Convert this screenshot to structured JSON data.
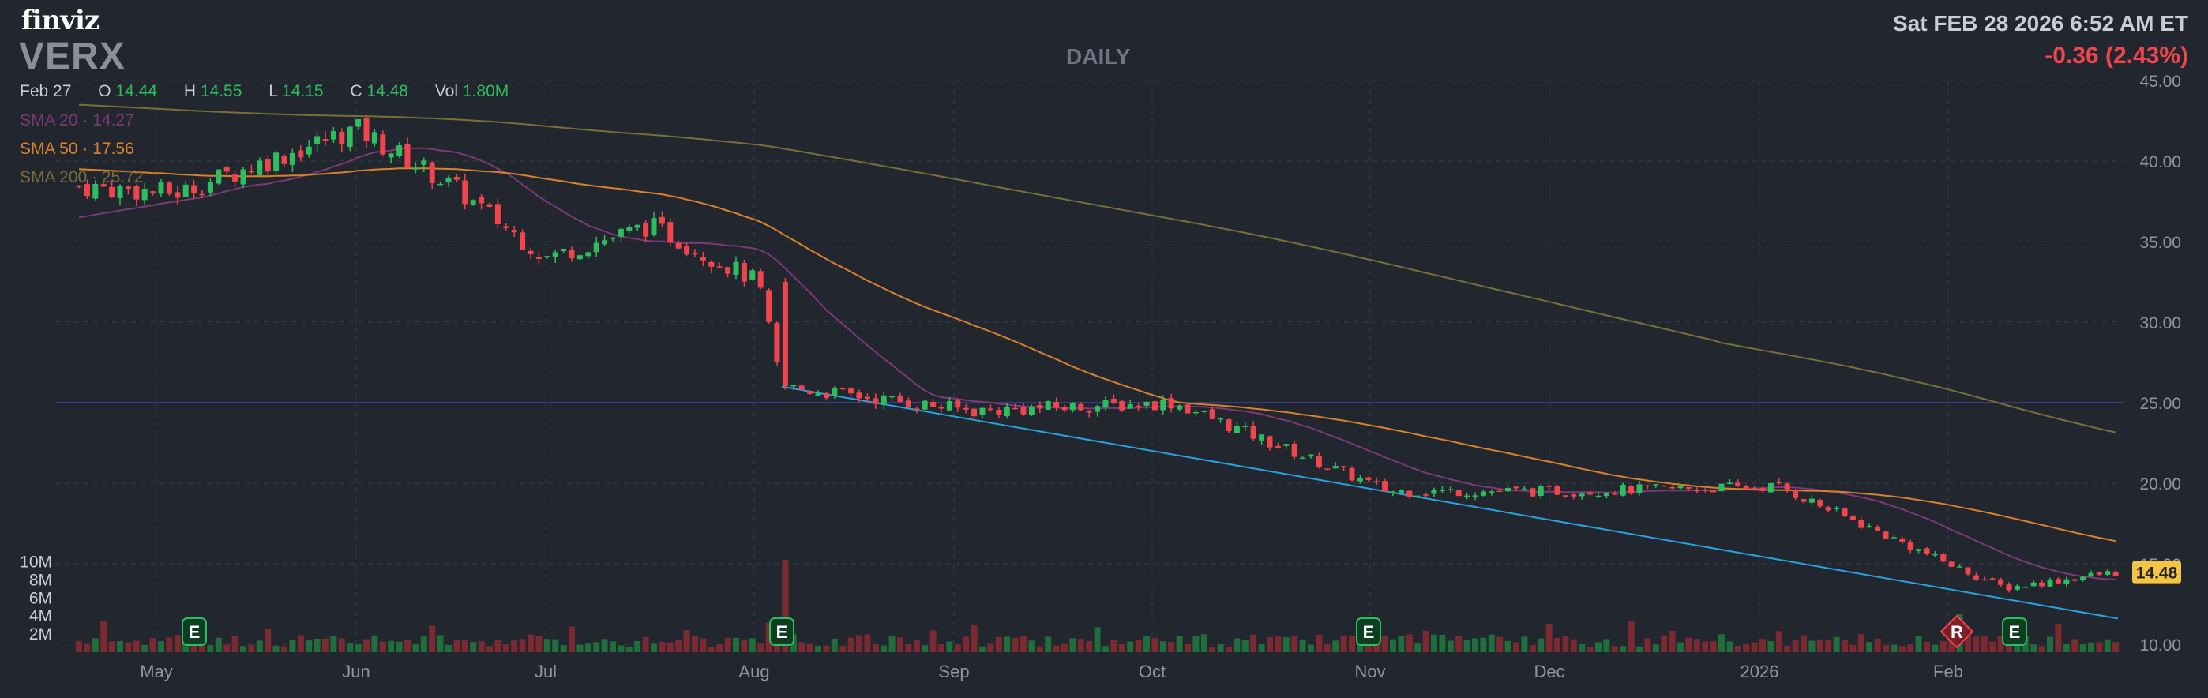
{
  "header": {
    "brand": "finviz",
    "ticker": "VERX",
    "timeframe": "DAILY",
    "datetime": "Sat FEB 28 2026 6:52 AM ET",
    "change": "-0.36 (2.43%)"
  },
  "ohlc": {
    "date": "Feb 27",
    "open_label": "O",
    "open": "14.44",
    "high_label": "H",
    "high": "14.55",
    "low_label": "L",
    "low": "14.15",
    "close_label": "C",
    "close": "14.48",
    "vol_label": "Vol",
    "vol": "1.80M"
  },
  "indicators": {
    "sma20_label": "SMA 20",
    "sma20_value": "14.27",
    "sma50_label": "SMA 50",
    "sma50_value": "17.56",
    "sma200_label": "SMA 200",
    "sma200_value": "25.72",
    "separator": "·"
  },
  "colors": {
    "background": "#22262f",
    "up": "#2fbe5f",
    "down": "#f0454d",
    "sma20": "#7a3a76",
    "sma50": "#d9822b",
    "sma200": "#7a6f3a",
    "trendline": "#29a3e0",
    "hline": "#3b3a8a",
    "price_tag": "#f4c542"
  },
  "chart_data": {
    "type": "candlestick",
    "y_ticks": [
      "45.00",
      "40.00",
      "35.00",
      "30.00",
      "25.00",
      "20.00",
      "15.00",
      "10.00"
    ],
    "ylim": [
      10,
      45
    ],
    "volume_ticks": [
      "10M",
      "8M",
      "6M",
      "4M",
      "2M"
    ],
    "x_ticks": [
      "May",
      "Jun",
      "Jul",
      "Aug",
      "Sep",
      "Oct",
      "Nov",
      "Dec",
      "2026",
      "Feb"
    ],
    "last_price_tag": "14.48",
    "events": [
      {
        "label": "E",
        "month": "May",
        "kind": "earnings"
      },
      {
        "label": "E",
        "month": "Aug",
        "kind": "earnings"
      },
      {
        "label": "E",
        "month": "Nov",
        "kind": "earnings"
      },
      {
        "label": "R",
        "month": "Feb",
        "kind": "rating"
      },
      {
        "label": "E",
        "month": "Feb",
        "kind": "earnings"
      }
    ],
    "horizontal_line": 25.0,
    "trendline": {
      "start": {
        "month": "Aug",
        "price": 26.0
      },
      "end": {
        "month": "Feb",
        "price": 11.6
      }
    },
    "price_anchors": [
      {
        "month": "Apr",
        "price": 38.5
      },
      {
        "month": "May",
        "price": 38.0
      },
      {
        "month": "Jun",
        "price": 42.0
      },
      {
        "month": "Jun",
        "price": 38.5
      },
      {
        "month": "Jul",
        "price": 34.0
      },
      {
        "month": "Jul",
        "price": 36.0
      },
      {
        "month": "Aug",
        "price": 32.5
      },
      {
        "month": "Aug",
        "price": 26.0
      },
      {
        "month": "Sep",
        "price": 24.5
      },
      {
        "month": "Oct",
        "price": 25.0
      },
      {
        "month": "Nov",
        "price": 19.5
      },
      {
        "month": "Dec",
        "price": 19.5
      },
      {
        "month": "2026",
        "price": 19.8
      },
      {
        "month": "Feb",
        "price": 15.0
      },
      {
        "month": "Feb",
        "price": 13.5
      },
      {
        "month": "Feb",
        "price": 14.48
      }
    ]
  }
}
